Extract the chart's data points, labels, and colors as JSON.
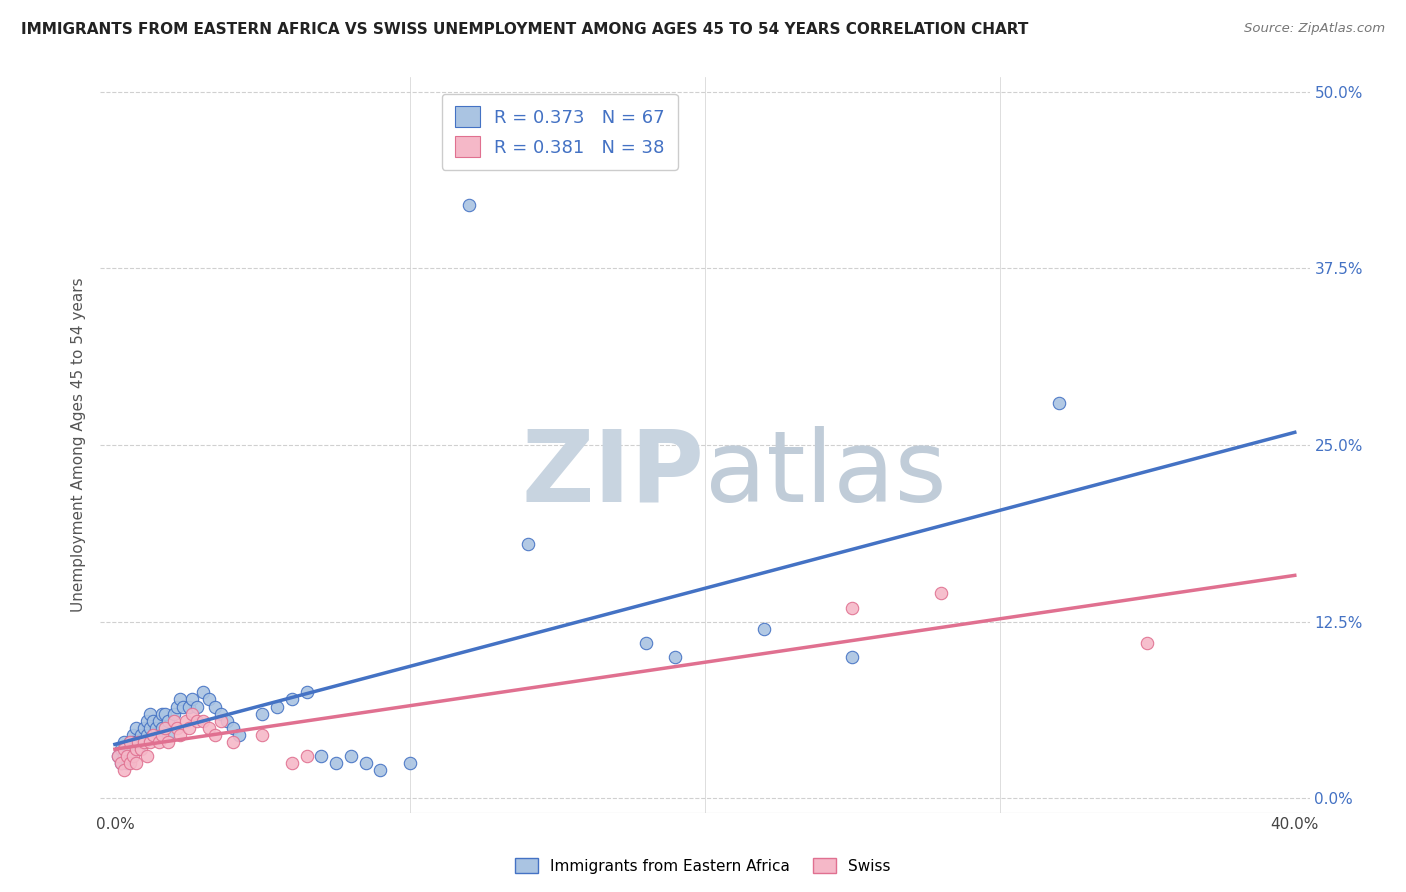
{
  "title": "IMMIGRANTS FROM EASTERN AFRICA VS SWISS UNEMPLOYMENT AMONG AGES 45 TO 54 YEARS CORRELATION CHART",
  "source": "Source: ZipAtlas.com",
  "xlabel_ticks_shown": [
    "0.0%",
    "40.0%"
  ],
  "xlabel_tick_vals_shown": [
    0.0,
    0.4
  ],
  "xlabel_tick_vals_minor": [
    0.1,
    0.2,
    0.3
  ],
  "ylabel": "Unemployment Among Ages 45 to 54 years",
  "ylabel_ticks": [
    "0.0%",
    "12.5%",
    "25.0%",
    "37.5%",
    "50.0%"
  ],
  "ylabel_tick_vals": [
    0.0,
    0.125,
    0.25,
    0.375,
    0.5
  ],
  "xlim": [
    -0.005,
    0.405
  ],
  "ylim": [
    -0.01,
    0.51
  ],
  "blue_R": 0.373,
  "blue_N": 67,
  "pink_R": 0.381,
  "pink_N": 38,
  "blue_color": "#aac4e2",
  "pink_color": "#f5b8c8",
  "blue_line_color": "#4472c4",
  "pink_line_color": "#e07090",
  "blue_scatter": [
    [
      0.001,
      0.03
    ],
    [
      0.002,
      0.035
    ],
    [
      0.002,
      0.025
    ],
    [
      0.003,
      0.04
    ],
    [
      0.003,
      0.03
    ],
    [
      0.004,
      0.03
    ],
    [
      0.004,
      0.025
    ],
    [
      0.005,
      0.04
    ],
    [
      0.005,
      0.035
    ],
    [
      0.005,
      0.03
    ],
    [
      0.006,
      0.045
    ],
    [
      0.006,
      0.04
    ],
    [
      0.006,
      0.035
    ],
    [
      0.007,
      0.05
    ],
    [
      0.007,
      0.04
    ],
    [
      0.007,
      0.035
    ],
    [
      0.008,
      0.04
    ],
    [
      0.008,
      0.035
    ],
    [
      0.009,
      0.045
    ],
    [
      0.009,
      0.04
    ],
    [
      0.01,
      0.05
    ],
    [
      0.01,
      0.04
    ],
    [
      0.011,
      0.055
    ],
    [
      0.011,
      0.045
    ],
    [
      0.012,
      0.06
    ],
    [
      0.012,
      0.05
    ],
    [
      0.013,
      0.055
    ],
    [
      0.013,
      0.045
    ],
    [
      0.014,
      0.05
    ],
    [
      0.015,
      0.055
    ],
    [
      0.015,
      0.045
    ],
    [
      0.016,
      0.06
    ],
    [
      0.016,
      0.05
    ],
    [
      0.017,
      0.06
    ],
    [
      0.018,
      0.055
    ],
    [
      0.018,
      0.045
    ],
    [
      0.02,
      0.06
    ],
    [
      0.021,
      0.065
    ],
    [
      0.022,
      0.07
    ],
    [
      0.023,
      0.065
    ],
    [
      0.025,
      0.065
    ],
    [
      0.026,
      0.07
    ],
    [
      0.028,
      0.065
    ],
    [
      0.03,
      0.075
    ],
    [
      0.032,
      0.07
    ],
    [
      0.034,
      0.065
    ],
    [
      0.036,
      0.06
    ],
    [
      0.038,
      0.055
    ],
    [
      0.04,
      0.05
    ],
    [
      0.042,
      0.045
    ],
    [
      0.05,
      0.06
    ],
    [
      0.055,
      0.065
    ],
    [
      0.06,
      0.07
    ],
    [
      0.065,
      0.075
    ],
    [
      0.07,
      0.03
    ],
    [
      0.075,
      0.025
    ],
    [
      0.08,
      0.03
    ],
    [
      0.085,
      0.025
    ],
    [
      0.09,
      0.02
    ],
    [
      0.1,
      0.025
    ],
    [
      0.12,
      0.42
    ],
    [
      0.14,
      0.18
    ],
    [
      0.18,
      0.11
    ],
    [
      0.19,
      0.1
    ],
    [
      0.22,
      0.12
    ],
    [
      0.25,
      0.1
    ],
    [
      0.32,
      0.28
    ]
  ],
  "pink_scatter": [
    [
      0.001,
      0.03
    ],
    [
      0.002,
      0.025
    ],
    [
      0.003,
      0.02
    ],
    [
      0.003,
      0.035
    ],
    [
      0.004,
      0.03
    ],
    [
      0.005,
      0.025
    ],
    [
      0.005,
      0.04
    ],
    [
      0.006,
      0.03
    ],
    [
      0.007,
      0.035
    ],
    [
      0.007,
      0.025
    ],
    [
      0.008,
      0.04
    ],
    [
      0.009,
      0.035
    ],
    [
      0.01,
      0.04
    ],
    [
      0.011,
      0.03
    ],
    [
      0.012,
      0.04
    ],
    [
      0.013,
      0.045
    ],
    [
      0.015,
      0.04
    ],
    [
      0.016,
      0.045
    ],
    [
      0.017,
      0.05
    ],
    [
      0.018,
      0.04
    ],
    [
      0.02,
      0.055
    ],
    [
      0.021,
      0.05
    ],
    [
      0.022,
      0.045
    ],
    [
      0.024,
      0.055
    ],
    [
      0.025,
      0.05
    ],
    [
      0.026,
      0.06
    ],
    [
      0.028,
      0.055
    ],
    [
      0.03,
      0.055
    ],
    [
      0.032,
      0.05
    ],
    [
      0.034,
      0.045
    ],
    [
      0.036,
      0.055
    ],
    [
      0.04,
      0.04
    ],
    [
      0.05,
      0.045
    ],
    [
      0.06,
      0.025
    ],
    [
      0.065,
      0.03
    ],
    [
      0.25,
      0.135
    ],
    [
      0.28,
      0.145
    ],
    [
      0.35,
      0.11
    ]
  ],
  "background_color": "#ffffff",
  "grid_color": "#d0d0d0",
  "watermark_zip_color": "#c8d4e0",
  "watermark_atlas_color": "#c0ccd8",
  "legend_label_blue": "Immigrants from Eastern Africa",
  "legend_label_pink": "Swiss"
}
